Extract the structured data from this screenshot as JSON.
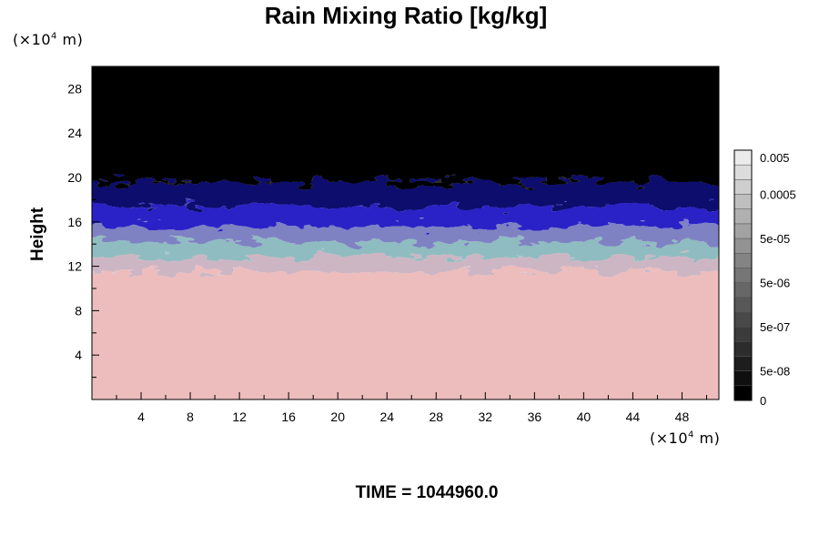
{
  "chart_data": {
    "type": "heatmap",
    "title": "Rain Mixing Ratio [kg/kg]",
    "ylabel": "Height",
    "xlabel": "",
    "y_unit": {
      "prefix": "(×10",
      "exp": "4",
      "suffix": " m)"
    },
    "x_unit": {
      "prefix": "(×10",
      "exp": "4",
      "suffix": " m)"
    },
    "xlim": [
      0,
      51
    ],
    "ylim": [
      0,
      30
    ],
    "x_ticks": [
      {
        "value": 4,
        "label": "4"
      },
      {
        "value": 8,
        "label": "8"
      },
      {
        "value": 12,
        "label": "12"
      },
      {
        "value": 16,
        "label": "16"
      },
      {
        "value": 20,
        "label": "20"
      },
      {
        "value": 24,
        "label": "24"
      },
      {
        "value": 28,
        "label": "28"
      },
      {
        "value": 32,
        "label": "32"
      },
      {
        "value": 36,
        "label": "36"
      },
      {
        "value": 40,
        "label": "40"
      },
      {
        "value": 44,
        "label": "44"
      },
      {
        "value": 48,
        "label": "48"
      }
    ],
    "y_ticks": [
      {
        "value": 4,
        "label": "4"
      },
      {
        "value": 8,
        "label": "8"
      },
      {
        "value": 12,
        "label": "12"
      },
      {
        "value": 16,
        "label": "16"
      },
      {
        "value": 20,
        "label": "20"
      },
      {
        "value": 24,
        "label": "24"
      },
      {
        "value": 28,
        "label": "28"
      }
    ],
    "layers": [
      {
        "from": 0,
        "to": 11.5,
        "color": "#edbcbc"
      },
      {
        "from": 11.5,
        "to": 12.8,
        "color": "#cdb6c4"
      },
      {
        "from": 12.8,
        "to": 14.2,
        "color": "#8fbcc0"
      },
      {
        "from": 14.2,
        "to": 15.6,
        "color": "#7e82c2"
      },
      {
        "from": 15.6,
        "to": 17.4,
        "color": "#2a22c6"
      },
      {
        "from": 17.4,
        "to": 19.6,
        "color": "#090a6e"
      },
      {
        "from": 19.6,
        "to": 30,
        "color": "#000000"
      }
    ],
    "colorbar": {
      "levels": 16,
      "labels": [
        {
          "level": 0,
          "label": "0"
        },
        {
          "level": 2,
          "label": "5e-08"
        },
        {
          "level": 5,
          "label": "5e-07"
        },
        {
          "level": 8,
          "label": "5e-06"
        },
        {
          "level": 11,
          "label": "5e-05"
        },
        {
          "level": 14,
          "label": "0.0005"
        },
        {
          "level": 16.5,
          "label": "0.005"
        }
      ]
    },
    "time_label": "TIME = 1044960.0",
    "grid": false,
    "legend": "right"
  }
}
